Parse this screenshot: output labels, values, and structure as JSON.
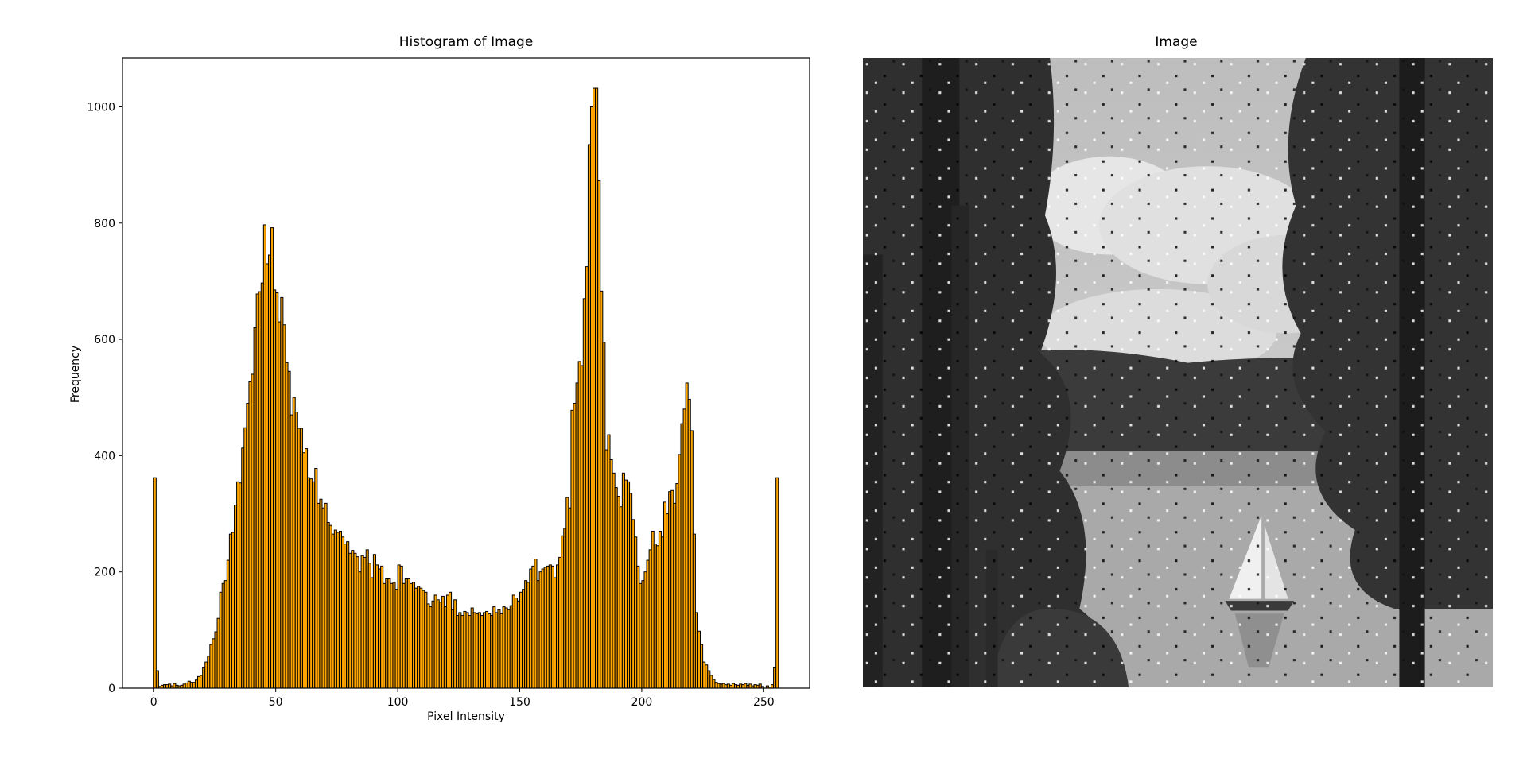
{
  "chart_data": {
    "type": "histogram",
    "title": "Histogram of Image",
    "xlabel": "Pixel Intensity",
    "ylabel": "Frequency",
    "color": "#ffa500",
    "edgecolor": "#000000",
    "bins": [
      0,
      1,
      2,
      3,
      4,
      5,
      6,
      7,
      8,
      9,
      10,
      11,
      12,
      13,
      14,
      15,
      16,
      17,
      18,
      19,
      20,
      21,
      22,
      23,
      24,
      25,
      26,
      27,
      28,
      29,
      30,
      31,
      32,
      33,
      34,
      35,
      36,
      37,
      38,
      39,
      40,
      41,
      42,
      43,
      44,
      45,
      46,
      47,
      48,
      49,
      50,
      51,
      52,
      53,
      54,
      55,
      56,
      57,
      58,
      59,
      60,
      61,
      62,
      63,
      64,
      65,
      66,
      67,
      68,
      69,
      70,
      71,
      72,
      73,
      74,
      75,
      76,
      77,
      78,
      79,
      80,
      81,
      82,
      83,
      84,
      85,
      86,
      87,
      88,
      89,
      90,
      91,
      92,
      93,
      94,
      95,
      96,
      97,
      98,
      99,
      100,
      101,
      102,
      103,
      104,
      105,
      106,
      107,
      108,
      109,
      110,
      111,
      112,
      113,
      114,
      115,
      116,
      117,
      118,
      119,
      120,
      121,
      122,
      123,
      124,
      125,
      126,
      127,
      128,
      129,
      130,
      131,
      132,
      133,
      134,
      135,
      136,
      137,
      138,
      139,
      140,
      141,
      142,
      143,
      144,
      145,
      146,
      147,
      148,
      149,
      150,
      151,
      152,
      153,
      154,
      155,
      156,
      157,
      158,
      159,
      160,
      161,
      162,
      163,
      164,
      165,
      166,
      167,
      168,
      169,
      170,
      171,
      172,
      173,
      174,
      175,
      176,
      177,
      178,
      179,
      180,
      181,
      182,
      183,
      184,
      185,
      186,
      187,
      188,
      189,
      190,
      191,
      192,
      193,
      194,
      195,
      196,
      197,
      198,
      199,
      200,
      201,
      202,
      203,
      204,
      205,
      206,
      207,
      208,
      209,
      210,
      211,
      212,
      213,
      214,
      215,
      216,
      217,
      218,
      219,
      220,
      221,
      222,
      223,
      224,
      225,
      226,
      227,
      228,
      229,
      230,
      231,
      232,
      233,
      234,
      235,
      236,
      237,
      238,
      239,
      240,
      241,
      242,
      243,
      244,
      245,
      246,
      247,
      248,
      249,
      250,
      251,
      252,
      253,
      254,
      255,
      256
    ],
    "values": [
      362,
      30,
      3,
      5,
      6,
      6,
      7,
      4,
      8,
      5,
      4,
      5,
      7,
      9,
      12,
      10,
      10,
      14,
      20,
      22,
      35,
      45,
      55,
      75,
      85,
      97,
      120,
      165,
      180,
      185,
      220,
      265,
      268,
      315,
      355,
      353,
      413,
      448,
      490,
      527,
      540,
      620,
      678,
      682,
      697,
      797,
      730,
      745,
      792,
      685,
      680,
      630,
      672,
      625,
      560,
      545,
      470,
      500,
      475,
      447,
      447,
      405,
      412,
      362,
      360,
      355,
      378,
      318,
      325,
      310,
      318,
      285,
      280,
      265,
      272,
      268,
      270,
      260,
      248,
      252,
      232,
      237,
      232,
      226,
      200,
      228,
      225,
      238,
      215,
      190,
      230,
      212,
      205,
      210,
      180,
      188,
      188,
      180,
      182,
      170,
      212,
      210,
      180,
      188,
      188,
      180,
      182,
      172,
      175,
      172,
      168,
      165,
      145,
      140,
      150,
      160,
      152,
      148,
      158,
      140,
      160,
      165,
      135,
      152,
      125,
      130,
      125,
      132,
      130,
      125,
      138,
      130,
      128,
      130,
      125,
      130,
      132,
      128,
      125,
      140,
      130,
      135,
      128,
      140,
      138,
      135,
      142,
      160,
      155,
      150,
      165,
      170,
      185,
      182,
      205,
      210,
      222,
      185,
      200,
      205,
      208,
      210,
      212,
      210,
      190,
      212,
      225,
      262,
      275,
      328,
      310,
      478,
      490,
      525,
      562,
      555,
      670,
      725,
      935,
      1000,
      1032,
      1032,
      873,
      683,
      595,
      410,
      436,
      393,
      370,
      345,
      330,
      312,
      370,
      358,
      355,
      335,
      290,
      260,
      210,
      180,
      185,
      200,
      220,
      238,
      270,
      248,
      245,
      270,
      260,
      320,
      300,
      338,
      340,
      318,
      352,
      402,
      455,
      480,
      525,
      497,
      443,
      265,
      130,
      98,
      75,
      45,
      40,
      30,
      22,
      15,
      10,
      8,
      7,
      8,
      6,
      7,
      5,
      8,
      6,
      5,
      7,
      6,
      8,
      5,
      7,
      4,
      6,
      5,
      7,
      3,
      0,
      4,
      2,
      6,
      35,
      362
    ],
    "xlim": [
      -12.8,
      268.8
    ],
    "xticks": [
      0,
      50,
      100,
      150,
      200,
      250
    ],
    "ylim": [
      0,
      1084
    ],
    "yticks": [
      0,
      200,
      400,
      600,
      800,
      1000
    ]
  },
  "image": {
    "title": "Image"
  }
}
